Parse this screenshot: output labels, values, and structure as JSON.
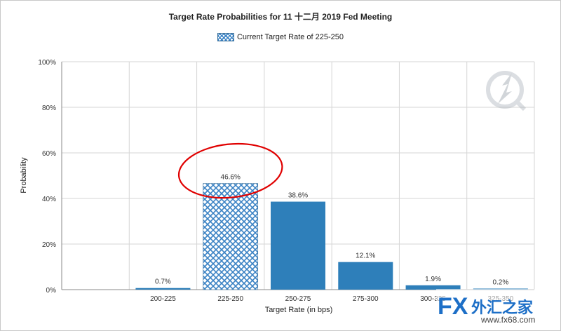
{
  "chart_data": {
    "type": "bar",
    "title": "Target Rate Probabilities for 11 十二月 2019  Fed Meeting",
    "legend": [
      "Current Target Rate of 225-250"
    ],
    "xlabel": "Target Rate (in bps)",
    "ylabel": "Probability",
    "categories": [
      "200-225",
      "225-250",
      "250-275",
      "275-300",
      "300-325",
      "325-350"
    ],
    "values": [
      0.7,
      46.6,
      38.6,
      12.1,
      1.9,
      0.2
    ],
    "value_labels": [
      "0.7%",
      "46.6%",
      "38.6%",
      "12.1%",
      "1.9%",
      "0.2%"
    ],
    "highlight_category": "225-250",
    "ylim": [
      0,
      100
    ],
    "yticks": [
      0,
      20,
      40,
      60,
      80,
      100
    ],
    "ytick_labels": [
      "0%",
      "20%",
      "40%",
      "60%",
      "80%",
      "100%"
    ],
    "grid": true,
    "colors": {
      "bar": "#2e7fba",
      "highlight": "#3a82c4",
      "annotation": "#e00000"
    }
  },
  "watermark": {
    "brand": "FX外汇之家",
    "url": "www.fx68.com"
  }
}
